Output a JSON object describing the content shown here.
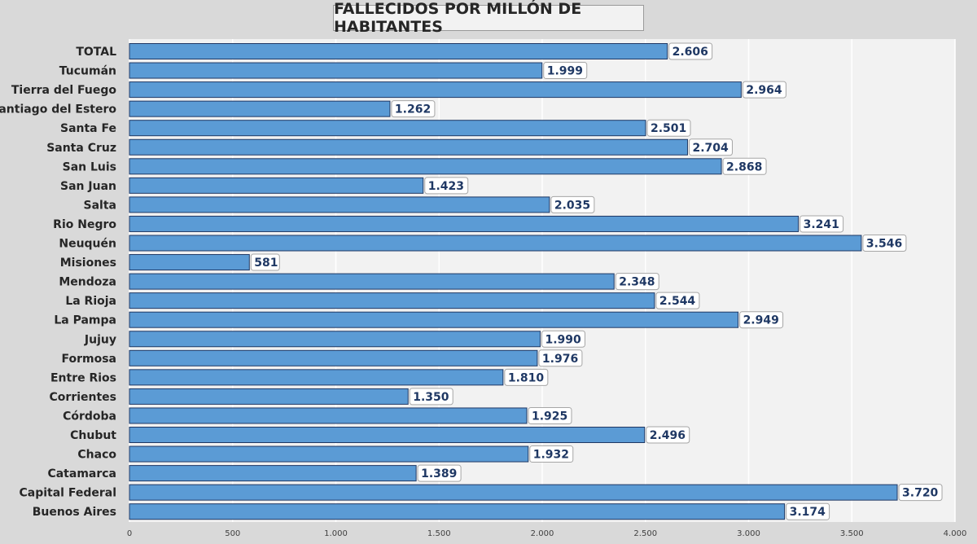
{
  "chart_data": {
    "type": "bar",
    "orientation": "horizontal",
    "title": "FALLECIDOS POR MILLÓN DE HABITANTES",
    "categories": [
      "TOTAL",
      "Tucumán",
      "Tierra del Fuego",
      "Santiago del Estero",
      "Santa Fe",
      "Santa Cruz",
      "San Luis",
      "San Juan",
      "Salta",
      "Rio Negro",
      "Neuquén",
      "Misiones",
      "Mendoza",
      "La Rioja",
      "La Pampa",
      "Jujuy",
      "Formosa",
      "Entre Rios",
      "Corrientes",
      "Córdoba",
      "Chubut",
      "Chaco",
      "Catamarca",
      "Capital Federal",
      "Buenos Aires"
    ],
    "values": [
      2606,
      1999,
      2964,
      1262,
      2501,
      2704,
      2868,
      1423,
      2035,
      3241,
      3546,
      581,
      2348,
      2544,
      2949,
      1990,
      1976,
      1810,
      1350,
      1925,
      2496,
      1932,
      1389,
      3720,
      3174
    ],
    "value_labels": [
      "2.606",
      "1.999",
      "2.964",
      "1.262",
      "2.501",
      "2.704",
      "2.868",
      "1.423",
      "2.035",
      "3.241",
      "3.546",
      "581",
      "2.348",
      "2.544",
      "2.949",
      "1.990",
      "1.976",
      "1.810",
      "1.350",
      "1.925",
      "2.496",
      "1.932",
      "1.389",
      "3.720",
      "3.174"
    ],
    "xlim": [
      0,
      4000
    ],
    "x_ticks": [
      0,
      500,
      1000,
      1500,
      2000,
      2500,
      3000,
      3500,
      4000
    ],
    "x_tick_labels": [
      "0",
      "500",
      "1.000",
      "1.500",
      "2.000",
      "2.500",
      "3.000",
      "3.500",
      "4.000"
    ],
    "grid": "vertical",
    "xlabel": "",
    "ylabel": "",
    "colors": {
      "bar_fill": "#5b9bd5",
      "bar_stroke": "#1f3864",
      "plot_bg": "#f2f2f2",
      "page_bg": "#d9d9d9",
      "grid": "#ffffff",
      "value_text": "#1f3864"
    }
  }
}
